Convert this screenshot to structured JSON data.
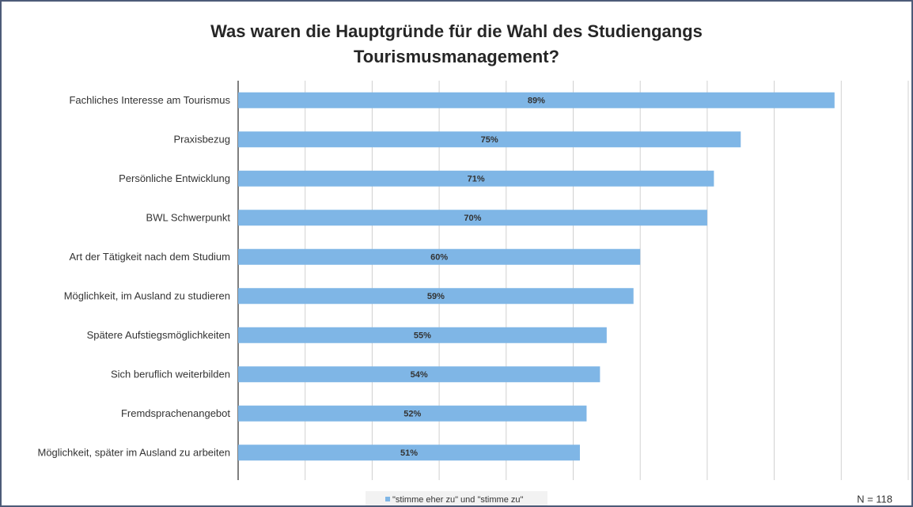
{
  "chart_data": {
    "type": "barh",
    "title": "Was waren die Hauptgründe für die Wahl des Studiengangs Tourismusmanagement?",
    "categories": [
      "Fachliches Interesse am Tourismus",
      "Praxisbezug",
      "Persönliche Entwicklung",
      "BWL Schwerpunkt",
      "Art der Tätigkeit nach dem Studium",
      "Möglichkeit, im Ausland zu studieren",
      "Spätere Aufstiegsmöglichkeiten",
      "Sich beruflich weiterbilden",
      "Fremdsprachenangebot",
      "Möglichkeit, später im Ausland zu arbeiten"
    ],
    "series": [
      {
        "name": "\"stimme eher zu\" und \"stimme zu\"",
        "color": "#7fb6e6",
        "values": [
          89,
          75,
          71,
          70,
          60,
          59,
          55,
          54,
          52,
          51
        ],
        "value_labels": [
          "89%",
          "75%",
          "71%",
          "70%",
          "60%",
          "59%",
          "55%",
          "54%",
          "52%",
          "51%"
        ]
      }
    ],
    "xlim": [
      0,
      100
    ],
    "xticks": [
      0,
      10,
      20,
      30,
      40,
      50,
      60,
      70,
      80,
      90,
      100
    ],
    "grid": true,
    "annotation": "N = 118"
  }
}
